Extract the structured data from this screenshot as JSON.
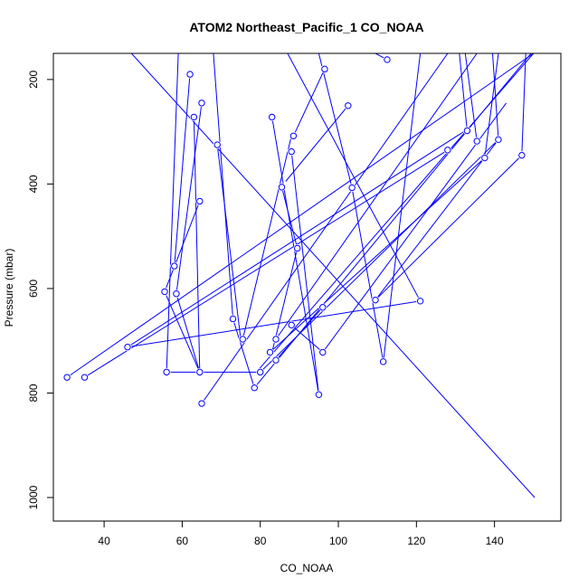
{
  "chart_data": {
    "type": "scatter",
    "title": "ATOM2 Northeast_Pacific_1 CO_NOAA",
    "xlabel": "CO_NOAA",
    "ylabel": "Pressure (mbar)",
    "xlim": [
      27,
      157
    ],
    "ylim": [
      1045,
      150
    ],
    "y_reversed": true,
    "x_ticks": [
      40,
      60,
      80,
      100,
      120,
      140
    ],
    "y_ticks": [
      200,
      400,
      600,
      800,
      1000
    ],
    "grid": false,
    "legend": "none",
    "marker": "open-circle",
    "line_color": "#0000ff",
    "series": [
      {
        "points": [
          [
            47.0,
            150.0
          ],
          [
            150.3,
            1000.0
          ]
        ]
      },
      {
        "points": [
          [
            30.5,
            770.0
          ],
          [
            150.0,
            150.0
          ]
        ]
      },
      {
        "points": [
          [
            35.0,
            770.0
          ],
          [
            128.0,
            335.0
          ]
        ]
      },
      {
        "points": [
          [
            46.0,
            712.0
          ],
          [
            132.5,
            298.0
          ]
        ]
      },
      {
        "points": [
          [
            56.0,
            760.0
          ],
          [
            64.5,
            760.0
          ],
          [
            79.0,
            760.0
          ],
          [
            150.0,
            150.0
          ]
        ]
      },
      {
        "points": [
          [
            65.0,
            820.0
          ],
          [
            128.0,
            150.0
          ]
        ]
      },
      {
        "points": [
          [
            78.5,
            790.0
          ],
          [
            150.5,
            140.0
          ],
          [
            151.0,
            130.0
          ]
        ]
      },
      {
        "points": [
          [
            96.0,
            636.0
          ],
          [
            84.0,
            737.0
          ]
        ]
      },
      {
        "points": [
          [
            80.0,
            760.0
          ],
          [
            141.0,
            315.0
          ],
          [
            109.5,
            622.0
          ]
        ]
      },
      {
        "points": [
          [
            84.0,
            697.0
          ],
          [
            135.5,
            150.0
          ]
        ]
      },
      {
        "points": [
          [
            88.0,
            670.0
          ],
          [
            96.0,
            722.0
          ]
        ]
      },
      {
        "points": [
          [
            96.0,
            722.0
          ],
          [
            143.0,
            245.0
          ]
        ]
      },
      {
        "points": [
          [
            121.0,
            624.0
          ],
          [
            87.0,
            150.0
          ]
        ]
      },
      {
        "points": [
          [
            95.0,
            803.0
          ],
          [
            83.0,
            272.0
          ]
        ]
      },
      {
        "points": [
          [
            75.5,
            697.0
          ],
          [
            88.0,
            308.0
          ]
        ]
      },
      {
        "points": [
          [
            111.5,
            740.0
          ],
          [
            103.5,
            407.0
          ]
        ]
      },
      {
        "points": [
          [
            109.5,
            622.0
          ],
          [
            147.0,
            345.0
          ]
        ]
      },
      {
        "points": [
          [
            82.5,
            722.0
          ],
          [
            137.5,
            350.0
          ]
        ]
      },
      {
        "points": [
          [
            73.0,
            658.0
          ],
          [
            68.0,
            150.0
          ]
        ]
      },
      {
        "points": [
          [
            62.0,
            190.0
          ],
          [
            58.0,
            557.0
          ]
        ]
      },
      {
        "points": [
          [
            63.0,
            272.0
          ],
          [
            64.5,
            760.0
          ]
        ]
      },
      {
        "points": [
          [
            64.5,
            433.0
          ],
          [
            55.5,
            606.0
          ]
        ]
      },
      {
        "points": [
          [
            65.0,
            245.0
          ],
          [
            58.5,
            610.0
          ]
        ]
      },
      {
        "points": [
          [
            69.0,
            325.0
          ],
          [
            75.0,
            697.0
          ]
        ]
      },
      {
        "points": [
          [
            89.5,
            523.0
          ],
          [
            85.5,
            406.0
          ]
        ]
      },
      {
        "points": [
          [
            88.0,
            338.0
          ],
          [
            95.0,
            803.0
          ]
        ]
      },
      {
        "points": [
          [
            96.5,
            180.0
          ],
          [
            88.5,
            308.0
          ]
        ]
      },
      {
        "points": [
          [
            102.5,
            250.0
          ],
          [
            86.5,
            395.0
          ]
        ]
      },
      {
        "points": [
          [
            112.5,
            162.0
          ],
          [
            109.5,
            150.0
          ]
        ]
      },
      {
        "points": [
          [
            135.5,
            318.0
          ],
          [
            132.5,
            150.0
          ]
        ]
      },
      {
        "points": [
          [
            133.0,
            298.0
          ],
          [
            131.0,
            150.0
          ]
        ]
      },
      {
        "points": [
          [
            137.5,
            350.0
          ],
          [
            141.0,
            150.0
          ]
        ]
      },
      {
        "points": [
          [
            141.0,
            315.0
          ],
          [
            139.5,
            150.0
          ]
        ]
      },
      {
        "points": [
          [
            147.0,
            345.0
          ],
          [
            148.0,
            150.0
          ]
        ]
      },
      {
        "points": [
          [
            56.0,
            760.0
          ],
          [
            59.0,
            150.0
          ]
        ]
      },
      {
        "points": [
          [
            55.5,
            606.0
          ],
          [
            64.5,
            760.0
          ]
        ]
      },
      {
        "points": [
          [
            58.5,
            610.0
          ],
          [
            64.5,
            760.0
          ]
        ]
      },
      {
        "points": [
          [
            121.0,
            624.0
          ],
          [
            46.0,
            712.0
          ]
        ]
      },
      {
        "points": [
          [
            73.0,
            658.0
          ],
          [
            78.5,
            790.0
          ]
        ]
      },
      {
        "points": [
          [
            89.5,
            523.0
          ],
          [
            83.0,
            722.0
          ]
        ]
      },
      {
        "points": [
          [
            103.5,
            407.0
          ],
          [
            95.0,
            150.0
          ]
        ]
      },
      {
        "points": [
          [
            111.5,
            740.0
          ],
          [
            121.0,
            150.0
          ]
        ]
      }
    ],
    "markers": [
      [
        30.5,
        770.0
      ],
      [
        35.0,
        770.0
      ],
      [
        46.0,
        712.0
      ],
      [
        55.5,
        606.0
      ],
      [
        56.0,
        760.0
      ],
      [
        58.0,
        557.0
      ],
      [
        58.5,
        610.0
      ],
      [
        62.0,
        190.0
      ],
      [
        63.0,
        272.0
      ],
      [
        64.5,
        433.0
      ],
      [
        65.0,
        245.0
      ],
      [
        64.5,
        760.0
      ],
      [
        65.0,
        820.0
      ],
      [
        69.0,
        325.0
      ],
      [
        73.0,
        658.0
      ],
      [
        75.5,
        697.0
      ],
      [
        78.5,
        790.0
      ],
      [
        80.0,
        760.0
      ],
      [
        83.0,
        272.0
      ],
      [
        84.0,
        697.0
      ],
      [
        84.0,
        737.0
      ],
      [
        82.5,
        722.0
      ],
      [
        85.5,
        406.0
      ],
      [
        88.0,
        670.0
      ],
      [
        88.0,
        338.0
      ],
      [
        88.5,
        308.0
      ],
      [
        89.5,
        523.0
      ],
      [
        95.0,
        803.0
      ],
      [
        96.0,
        722.0
      ],
      [
        96.0,
        636.0
      ],
      [
        96.5,
        180.0
      ],
      [
        102.5,
        250.0
      ],
      [
        103.5,
        407.0
      ],
      [
        109.5,
        622.0
      ],
      [
        111.5,
        740.0
      ],
      [
        112.5,
        162.0
      ],
      [
        121.0,
        624.0
      ],
      [
        128.0,
        335.0
      ],
      [
        133.0,
        298.0
      ],
      [
        135.5,
        318.0
      ],
      [
        137.5,
        350.0
      ],
      [
        141.0,
        315.0
      ],
      [
        147.0,
        345.0
      ]
    ]
  }
}
